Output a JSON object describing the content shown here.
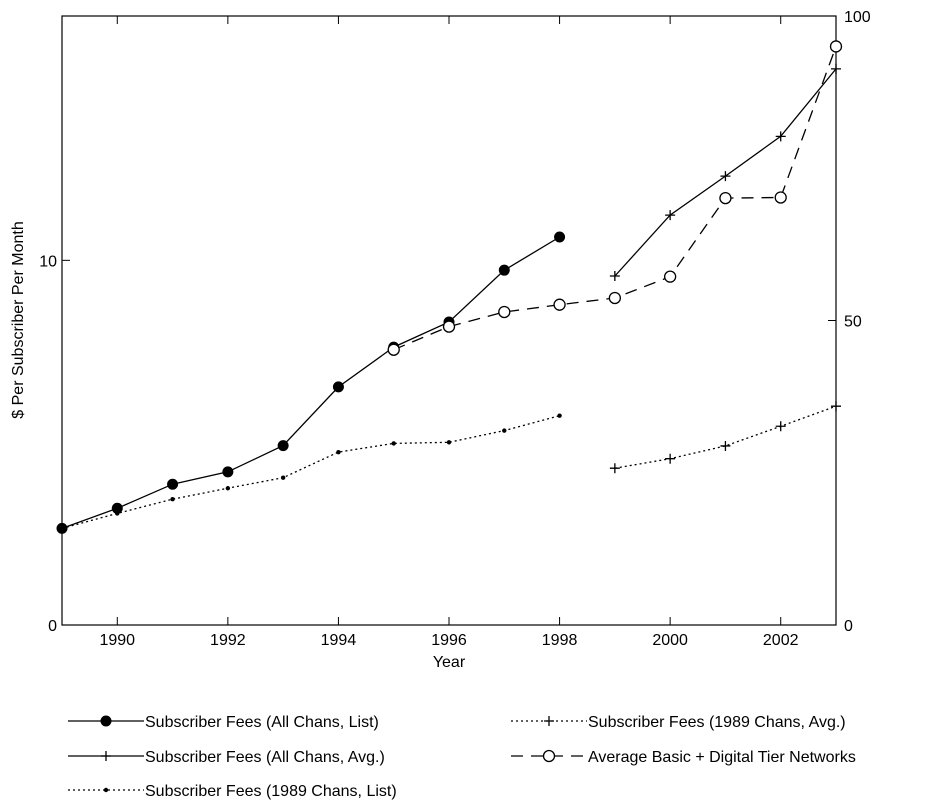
{
  "chart_data": {
    "type": "line",
    "title": "",
    "xlabel": "Year",
    "ylabel_left": "$ Per Subscriber Per Month",
    "ylabel_right": "",
    "xlim": [
      1989,
      2003
    ],
    "ylim_left": [
      0,
      16.7
    ],
    "ylim_right": [
      0,
      100
    ],
    "x_ticks": [
      1990,
      1992,
      1994,
      1996,
      1998,
      2000,
      2002
    ],
    "y_ticks_left": [
      0,
      10
    ],
    "y_ticks_right": [
      0,
      50,
      100
    ],
    "grid": false,
    "legend_position": "bottom",
    "series": [
      {
        "name": "Subscriber Fees (All Chans, List)",
        "axis": "left",
        "line": "solid",
        "marker": "filled-circle",
        "points": [
          [
            1989,
            2.65
          ],
          [
            1990,
            3.2
          ],
          [
            1991,
            3.86
          ],
          [
            1992,
            4.2
          ],
          [
            1993,
            4.92
          ],
          [
            1994,
            6.53
          ],
          [
            1995,
            7.62
          ],
          [
            1996,
            8.31
          ],
          [
            1997,
            9.73
          ],
          [
            1998,
            10.64
          ]
        ]
      },
      {
        "name": "Subscriber Fees (All Chans, Avg.)",
        "axis": "left",
        "line": "solid",
        "marker": "plus",
        "points": [
          [
            1999,
            9.57
          ],
          [
            2000,
            11.24
          ],
          [
            2001,
            12.31
          ],
          [
            2002,
            13.4
          ],
          [
            2003,
            15.25
          ]
        ]
      },
      {
        "name": "Subscriber Fees (1989 Chans, List)",
        "axis": "left",
        "line": "dotted",
        "marker": "small-dot",
        "points": [
          [
            1989,
            2.65
          ],
          [
            1990,
            3.06
          ],
          [
            1991,
            3.45
          ],
          [
            1992,
            3.75
          ],
          [
            1993,
            4.04
          ],
          [
            1994,
            4.74
          ],
          [
            1995,
            4.98
          ],
          [
            1996,
            5.01
          ],
          [
            1997,
            5.33
          ],
          [
            1998,
            5.74
          ]
        ]
      },
      {
        "name": "Subscriber Fees (1989 Chans, Avg.)",
        "axis": "left",
        "line": "dotted",
        "marker": "plus",
        "points": [
          [
            1999,
            4.3
          ],
          [
            2000,
            4.56
          ],
          [
            2001,
            4.91
          ],
          [
            2002,
            5.45
          ],
          [
            2003,
            6.0
          ]
        ]
      },
      {
        "name": "Average Basic + Digital Tier Networks",
        "axis": "right",
        "line": "dashed",
        "marker": "open-circle",
        "points": [
          [
            1995,
            45.2
          ],
          [
            1996,
            49.0
          ],
          [
            1997,
            51.4
          ],
          [
            1998,
            52.6
          ],
          [
            1999,
            53.7
          ],
          [
            2000,
            57.2
          ],
          [
            2001,
            70.1
          ],
          [
            2002,
            70.2
          ],
          [
            2003,
            95.0
          ]
        ]
      }
    ],
    "legend_columns": [
      [
        "Subscriber Fees (All Chans, List)",
        "Subscriber Fees (All Chans, Avg.)",
        "Subscriber Fees (1989 Chans, List)"
      ],
      [
        "Subscriber Fees (1989 Chans, Avg.)",
        "Average Basic + Digital Tier Networks"
      ]
    ]
  }
}
